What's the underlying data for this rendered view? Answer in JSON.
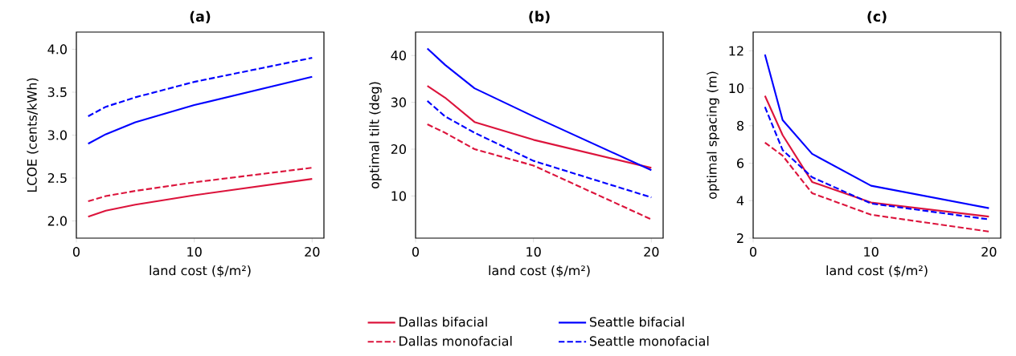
{
  "chart_data": [
    {
      "type": "line",
      "title": "(a)",
      "xlabel": "land cost ($/m²)",
      "ylabel": "LCOE (cents/kWh)",
      "x": [
        1,
        2.5,
        5,
        10,
        20
      ],
      "xlim": [
        0,
        21
      ],
      "ylim": [
        1.8,
        4.2
      ],
      "xticks": [
        0,
        10,
        20
      ],
      "yticks": [
        {
          "value": 2,
          "label": "2.0"
        },
        {
          "value": 2.5,
          "label": "2.5"
        },
        {
          "value": 3,
          "label": "3.0"
        },
        {
          "value": 3.5,
          "label": "3.5"
        },
        {
          "value": 4,
          "label": "4.0"
        }
      ],
      "legend": false,
      "grid": false,
      "series": [
        {
          "color": "#dc143c",
          "line_style": "solid",
          "values": [
            2.05,
            2.12,
            2.19,
            2.3,
            2.49
          ]
        },
        {
          "color": "#dc143c",
          "line_style": "dashed",
          "values": [
            2.23,
            2.29,
            2.35,
            2.45,
            2.62
          ]
        },
        {
          "color": "#0000ff",
          "line_style": "solid",
          "values": [
            2.9,
            3.01,
            3.15,
            3.35,
            3.68
          ]
        },
        {
          "color": "#0000ff",
          "line_style": "dashed",
          "values": [
            3.22,
            3.33,
            3.44,
            3.62,
            3.9
          ]
        }
      ]
    },
    {
      "type": "line",
      "title": "(b)",
      "xlabel": "land cost ($/m²)",
      "ylabel": "optimal tilt (deg)",
      "x": [
        1,
        2.5,
        5,
        10,
        20
      ],
      "xlim": [
        0,
        21
      ],
      "ylim": [
        1,
        45
      ],
      "xticks": [
        0,
        10,
        20
      ],
      "yticks": [
        10,
        20,
        30,
        40
      ],
      "legend": "bottom",
      "grid": false,
      "series": [
        {
          "name": "Dallas bifacial",
          "color": "#dc143c",
          "line_style": "solid",
          "values": [
            33.5,
            31,
            25.8,
            22,
            16
          ]
        },
        {
          "name": "Dallas monofacial",
          "color": "#dc143c",
          "line_style": "dashed",
          "values": [
            25.3,
            23.5,
            20,
            16.5,
            5
          ]
        },
        {
          "name": "Seattle bifacial",
          "color": "#0000ff",
          "line_style": "solid",
          "values": [
            41.5,
            38,
            33,
            27,
            15.5
          ]
        },
        {
          "name": "Seattle monofacial",
          "color": "#0000ff",
          "line_style": "dashed",
          "values": [
            30.3,
            27,
            23.5,
            17.5,
            9.7
          ]
        }
      ]
    },
    {
      "type": "line",
      "title": "(c)",
      "xlabel": "land cost ($/m²)",
      "ylabel": "optimal spacing (m)",
      "x": [
        1,
        2.5,
        5,
        10,
        20
      ],
      "xlim": [
        0,
        21
      ],
      "ylim": [
        2,
        13
      ],
      "xticks": [
        0,
        10,
        20
      ],
      "yticks": [
        2,
        4,
        6,
        8,
        10,
        12
      ],
      "legend": false,
      "grid": false,
      "series": [
        {
          "color": "#dc143c",
          "line_style": "solid",
          "values": [
            9.6,
            7.5,
            5.0,
            3.9,
            3.15
          ]
        },
        {
          "color": "#dc143c",
          "line_style": "dashed",
          "values": [
            7.1,
            6.4,
            4.4,
            3.25,
            2.35
          ]
        },
        {
          "color": "#0000ff",
          "line_style": "solid",
          "values": [
            11.8,
            8.3,
            6.5,
            4.8,
            3.6
          ]
        },
        {
          "color": "#0000ff",
          "line_style": "dashed",
          "values": [
            9.0,
            6.7,
            5.25,
            3.85,
            3.0
          ]
        }
      ]
    }
  ]
}
